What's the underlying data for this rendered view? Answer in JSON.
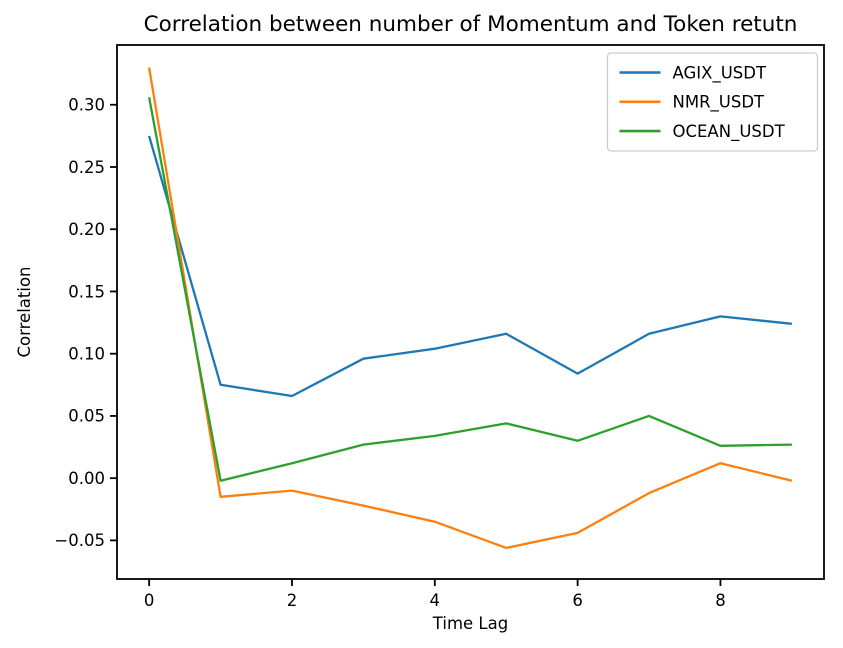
{
  "chart_data": {
    "type": "line",
    "title": "Correlation between number of Momentum and Token retutn",
    "xlabel": "Time Lag",
    "ylabel": "Correlation",
    "x": [
      0,
      1,
      2,
      3,
      4,
      5,
      6,
      7,
      8,
      9
    ],
    "series": [
      {
        "name": "AGIX_USDT",
        "color": "#1f77b4",
        "values": [
          0.275,
          0.075,
          0.066,
          0.096,
          0.104,
          0.116,
          0.084,
          0.116,
          0.13,
          0.124
        ]
      },
      {
        "name": "NMR_USDT",
        "color": "#ff7f0e",
        "values": [
          0.33,
          -0.015,
          -0.01,
          -0.022,
          -0.035,
          -0.056,
          -0.044,
          -0.012,
          0.012,
          -0.002
        ]
      },
      {
        "name": "OCEAN_USDT",
        "color": "#2ca02c",
        "values": [
          0.306,
          -0.002,
          0.012,
          0.027,
          0.034,
          0.044,
          0.03,
          0.05,
          0.026,
          0.027
        ]
      }
    ],
    "xlim": [
      -0.45,
      9.45
    ],
    "ylim": [
      -0.081,
      0.348
    ],
    "xticks": [
      0,
      2,
      4,
      6,
      8
    ],
    "xtick_labels": [
      "0",
      "2",
      "4",
      "6",
      "8"
    ],
    "yticks": [
      -0.05,
      0.0,
      0.05,
      0.1,
      0.15,
      0.2,
      0.25,
      0.3
    ],
    "ytick_labels": [
      "−0.05",
      "0.00",
      "0.05",
      "0.10",
      "0.15",
      "0.20",
      "0.25",
      "0.30"
    ],
    "grid": false,
    "legend": {
      "position": "upper-right",
      "entries": [
        "AGIX_USDT",
        "NMR_USDT",
        "OCEAN_USDT"
      ]
    },
    "colors": {
      "spine": "#000000",
      "tick": "#000000",
      "legend_border": "#cccccc",
      "legend_bg": "#ffffff"
    }
  }
}
